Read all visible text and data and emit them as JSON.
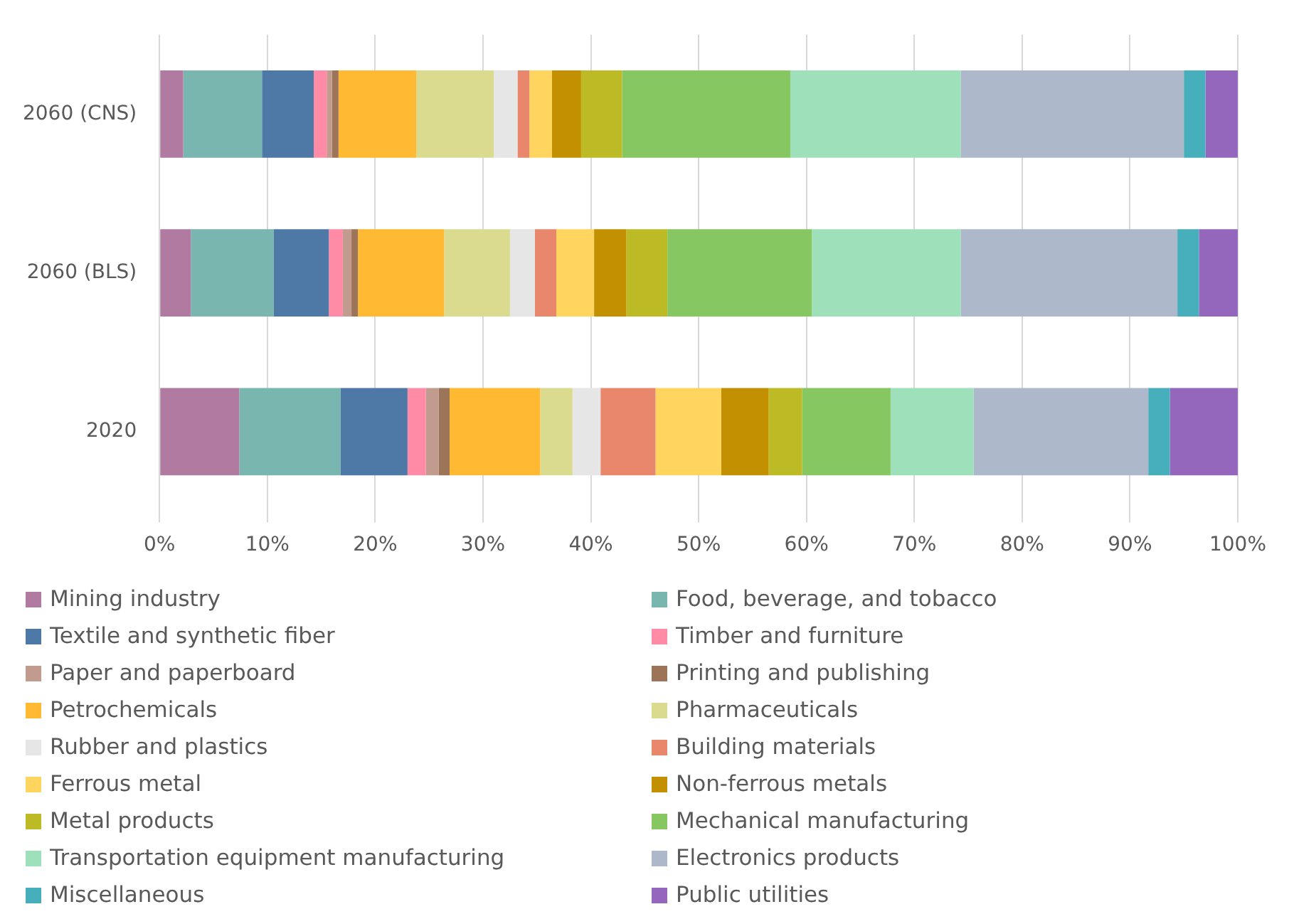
{
  "chart_data": {
    "type": "bar",
    "orientation": "horizontal",
    "stacked": true,
    "grid": "x",
    "legend": "bottom",
    "categories": [
      "2060 (CNS)",
      "2060 (BLS)",
      "2020"
    ],
    "xlim": [
      0,
      100
    ],
    "xticks": [
      {
        "value": 0,
        "label": "0%"
      },
      {
        "value": 10,
        "label": "10%"
      },
      {
        "value": 20,
        "label": "20%"
      },
      {
        "value": 30,
        "label": "30%"
      },
      {
        "value": 40,
        "label": "40%"
      },
      {
        "value": 50,
        "label": "50%"
      },
      {
        "value": 60,
        "label": "60%"
      },
      {
        "value": 70,
        "label": "70%"
      },
      {
        "value": 80,
        "label": "80%"
      },
      {
        "value": 90,
        "label": "90%"
      },
      {
        "value": 100,
        "label": "100%"
      }
    ],
    "series": [
      {
        "name": "Mining industry",
        "color": "#b07aa1",
        "values": [
          2.2,
          2.9,
          7.4
        ]
      },
      {
        "name": "Food, beverage, and tobacco",
        "color": "#79b6b0",
        "values": [
          7.3,
          7.7,
          9.4
        ]
      },
      {
        "name": "Textile and synthetic fiber",
        "color": "#4e79a7",
        "values": [
          4.8,
          5.1,
          6.2
        ]
      },
      {
        "name": "Timber and furniture",
        "color": "#ff8ba6",
        "values": [
          1.2,
          1.3,
          1.7
        ]
      },
      {
        "name": "Paper and paperboard",
        "color": "#c29b8f",
        "values": [
          0.5,
          0.8,
          1.2
        ]
      },
      {
        "name": "Printing and publishing",
        "color": "#9c7558",
        "values": [
          0.6,
          0.6,
          1.0
        ]
      },
      {
        "name": "Petrochemicals",
        "color": "#ffb933",
        "values": [
          7.2,
          8.0,
          8.4
        ]
      },
      {
        "name": "Pharmaceuticals",
        "color": "#dadb8f",
        "values": [
          7.2,
          6.1,
          3.0
        ]
      },
      {
        "name": "Rubber and plastics",
        "color": "#e6e6e6",
        "values": [
          2.2,
          2.3,
          2.6
        ]
      },
      {
        "name": "Building materials",
        "color": "#e8876b",
        "values": [
          1.1,
          2.0,
          5.1
        ]
      },
      {
        "name": "Ferrous metal",
        "color": "#ffd55f",
        "values": [
          2.1,
          3.5,
          6.1
        ]
      },
      {
        "name": "Non-ferrous metals",
        "color": "#c29000",
        "values": [
          2.7,
          3.0,
          4.4
        ]
      },
      {
        "name": "Metal products",
        "color": "#bcbb26",
        "values": [
          3.8,
          3.8,
          3.1
        ]
      },
      {
        "name": "Mechanical manufacturing",
        "color": "#87c762",
        "values": [
          15.6,
          13.4,
          8.2
        ]
      },
      {
        "name": "Transportation equipment manufacturing",
        "color": "#9ee0ba",
        "values": [
          15.8,
          13.8,
          7.7
        ]
      },
      {
        "name": "Electronics products",
        "color": "#adb8ca",
        "values": [
          20.7,
          20.1,
          16.2
        ]
      },
      {
        "name": "Miscellaneous",
        "color": "#47afbc",
        "values": [
          2.0,
          2.0,
          2.0
        ]
      },
      {
        "name": "Public utilities",
        "color": "#9467bd",
        "values": [
          3.0,
          3.6,
          6.3
        ]
      }
    ]
  }
}
